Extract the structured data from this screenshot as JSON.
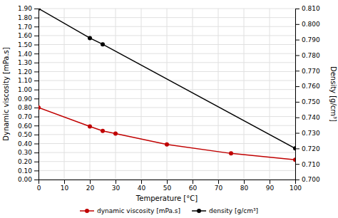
{
  "chart_data": {
    "type": "line",
    "xlabel": "Temperature [°C]",
    "ylabel": "Dynamic viscosity [mPa.s]",
    "y2label": "Density [g/cm³]",
    "series": [
      {
        "name": "dynamic viscosity [mPa.s]",
        "color": "#c00000",
        "marker": "circle",
        "x": [
          0,
          20,
          25,
          30,
          50,
          75,
          100
        ],
        "values": [
          0.8,
          0.59,
          0.54,
          0.51,
          0.39,
          0.29,
          0.22
        ]
      },
      {
        "name": "density [g/cm³]",
        "color": "#000000",
        "marker": "circle",
        "axis": "y2",
        "x": [
          0,
          20,
          25,
          100
        ],
        "values": [
          0.81,
          0.791,
          0.787,
          0.72
        ]
      }
    ],
    "xlim": [
      0,
      100
    ],
    "xticks": [
      0,
      10,
      20,
      30,
      40,
      50,
      60,
      70,
      80,
      90,
      100
    ],
    "ylim": [
      0.0,
      1.9
    ],
    "yticks": [
      {
        "value": 0.0,
        "label": "0.00"
      },
      {
        "value": 0.1,
        "label": "0.10"
      },
      {
        "value": 0.2,
        "label": "0.20"
      },
      {
        "value": 0.3,
        "label": "0.30"
      },
      {
        "value": 0.4,
        "label": "0.40"
      },
      {
        "value": 0.5,
        "label": "0.50"
      },
      {
        "value": 0.6,
        "label": "0.60"
      },
      {
        "value": 0.7,
        "label": "0.70"
      },
      {
        "value": 0.8,
        "label": "0.80"
      },
      {
        "value": 0.9,
        "label": "0.90"
      },
      {
        "value": 1.0,
        "label": "1.00"
      },
      {
        "value": 1.1,
        "label": "1.10"
      },
      {
        "value": 1.2,
        "label": "1.20"
      },
      {
        "value": 1.3,
        "label": "1.30"
      },
      {
        "value": 1.4,
        "label": "1.40"
      },
      {
        "value": 1.5,
        "label": "1.50"
      },
      {
        "value": 1.6,
        "label": "1.60"
      },
      {
        "value": 1.7,
        "label": "1.70"
      },
      {
        "value": 1.8,
        "label": "1.80"
      },
      {
        "value": 1.9,
        "label": "1.90"
      }
    ],
    "y2lim": [
      0.7,
      0.81
    ],
    "y2ticks": [
      {
        "value": 0.7,
        "label": "0.700"
      },
      {
        "value": 0.71,
        "label": "0.710"
      },
      {
        "value": 0.72,
        "label": "0.720"
      },
      {
        "value": 0.73,
        "label": "0.730"
      },
      {
        "value": 0.74,
        "label": "0.740"
      },
      {
        "value": 0.75,
        "label": "0.750"
      },
      {
        "value": 0.76,
        "label": "0.760"
      },
      {
        "value": 0.77,
        "label": "0.770"
      },
      {
        "value": 0.78,
        "label": "0.780"
      },
      {
        "value": 0.79,
        "label": "0.790"
      },
      {
        "value": 0.8,
        "label": "0.800"
      },
      {
        "value": 0.81,
        "label": "0.810"
      }
    ],
    "grid": true,
    "legend": "bottom"
  }
}
